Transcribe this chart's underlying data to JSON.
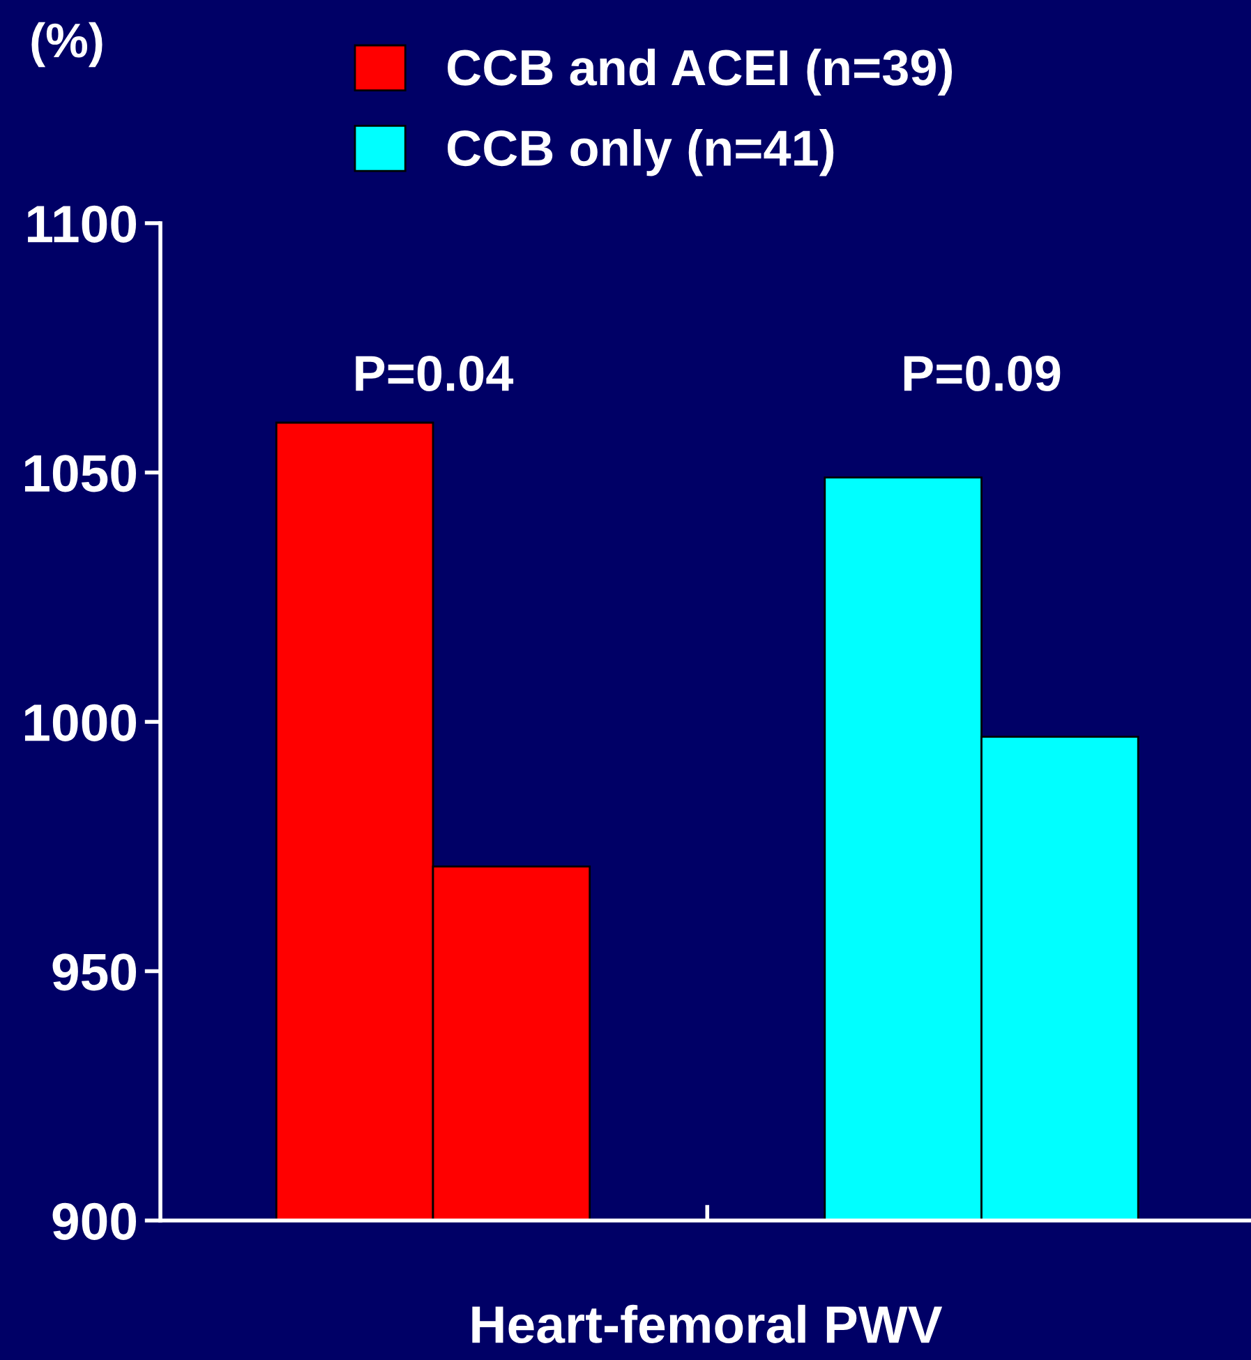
{
  "chart_data": {
    "type": "bar",
    "ylabel": "(%)",
    "xlabel": "Heart-femoral PWV",
    "categories": [
      null,
      null,
      null,
      null
    ],
    "series": [
      {
        "name": "CCB and ACEI (n=39)",
        "color": "#ff0000",
        "values": [
          1060,
          971,
          null,
          null
        ]
      },
      {
        "name": "CCB only (n=41)",
        "color": "#00ffff",
        "values": [
          null,
          null,
          1049,
          997
        ]
      }
    ],
    "annotations": [
      "P=0.04",
      "P=0.09"
    ],
    "ylim": [
      900,
      1100
    ],
    "yticks": [
      900,
      950,
      1000,
      1050,
      1100
    ],
    "grid": false,
    "legend": "top"
  }
}
